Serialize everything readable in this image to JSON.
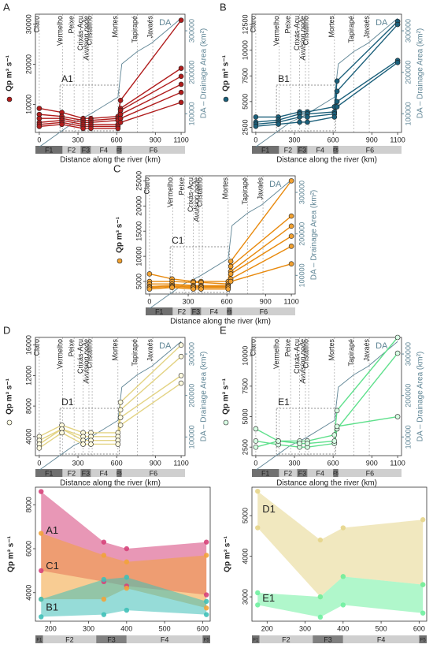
{
  "common": {
    "xlabel": "Distance along the river (km)",
    "ylabel": "Qp m³ s⁻¹",
    "y2label": "DA – Drainage Area (km²)",
    "xlim": [
      -30,
      1130
    ],
    "xticks": [
      0,
      300,
      600,
      900,
      1100
    ],
    "rivers": [
      {
        "name": "Claro",
        "x": 0
      },
      {
        "name": "Vermelho",
        "x": 180
      },
      {
        "name": "Peixe",
        "x": 270
      },
      {
        "name": "Crixás-Açu",
        "x": 340
      },
      {
        "name": "Avulsion node",
        "x": 385
      },
      {
        "name": "Cristalino",
        "x": 410
      },
      {
        "name": "Mortes",
        "x": 610
      },
      {
        "name": "Tapirapé",
        "x": 760
      },
      {
        "name": "Javaés",
        "x": 880
      }
    ],
    "zones": [
      {
        "name": "F1",
        "start": -30,
        "end": 180,
        "color": "#707070"
      },
      {
        "name": "F2",
        "start": 180,
        "end": 320,
        "color": "#cfcfcf"
      },
      {
        "name": "F3",
        "start": 320,
        "end": 400,
        "color": "#808080"
      },
      {
        "name": "F4",
        "start": 400,
        "end": 600,
        "color": "#cfcfcf"
      },
      {
        "name": "F5",
        "start": 600,
        "end": 640,
        "color": "#707070"
      },
      {
        "name": "F6",
        "start": 640,
        "end": 1130,
        "color": "#cfcfcf"
      }
    ],
    "da": {
      "name": "DA",
      "color": "#5f8595",
      "x": [
        0,
        180,
        270,
        340,
        400,
        610,
        640,
        760,
        870,
        1100
      ],
      "values": [
        20000,
        60000,
        80000,
        90000,
        100000,
        140000,
        220000,
        250000,
        270000,
        330000
      ]
    }
  },
  "chart_data": [
    {
      "type": "line",
      "panel": "A",
      "inset": "A1",
      "color": "#b01c1c",
      "marker_fill": "#b01c1c",
      "ylim": [
        3000,
        32500
      ],
      "yticks": [
        10000,
        20000,
        30000
      ],
      "y2lim": [
        55000,
        340000
      ],
      "y2ticks": [
        100000,
        200000,
        300000
      ],
      "x": [
        0,
        175,
        340,
        400,
        610,
        630,
        1100
      ],
      "series": [
        {
          "values": [
            9000,
            8000,
            6500,
            6500,
            7000,
            11000,
            31000
          ]
        },
        {
          "values": [
            7500,
            7000,
            6000,
            6000,
            6500,
            9000,
            19000
          ]
        },
        {
          "values": [
            6500,
            6500,
            5500,
            5500,
            6000,
            8500,
            17000
          ]
        },
        {
          "values": [
            5500,
            6000,
            5000,
            5000,
            5000,
            7500,
            15000
          ]
        },
        {
          "values": [
            5000,
            5500,
            4500,
            4500,
            4500,
            6500,
            13000
          ]
        },
        {
          "values": [
            4500,
            5000,
            4000,
            4000,
            4000,
            5500,
            10500
          ]
        }
      ]
    },
    {
      "type": "line",
      "panel": "B",
      "inset": "B1",
      "color": "#1a5f7a",
      "marker_fill": "#1a5f7a",
      "ylim": [
        2000,
        13500
      ],
      "yticks": [
        2500,
        5000,
        7500,
        10000,
        12500
      ],
      "y2lim": [
        55000,
        340000
      ],
      "y2ticks": [
        100000,
        200000,
        300000
      ],
      "x": [
        0,
        175,
        340,
        400,
        610,
        630,
        1100
      ],
      "series": [
        {
          "values": [
            3500,
            3500,
            4000,
            4000,
            4500,
            7000,
            12800
          ]
        },
        {
          "values": [
            3000,
            3200,
            3800,
            3800,
            4000,
            6000,
            12500
          ]
        },
        {
          "values": [
            2800,
            3000,
            3500,
            3500,
            3800,
            5000,
            9000
          ]
        },
        {
          "values": [
            2600,
            2800,
            3000,
            3000,
            3500,
            4500,
            8800
          ]
        }
      ]
    },
    {
      "type": "line",
      "panel": "C",
      "inset": "C1",
      "color": "#e8890c",
      "marker_fill": "#f0a030",
      "ylim": [
        2500,
        26000
      ],
      "yticks": [
        5000,
        10000,
        15000,
        20000,
        25000
      ],
      "y2lim": [
        55000,
        340000
      ],
      "y2ticks": [
        100000,
        200000,
        300000
      ],
      "x": [
        0,
        175,
        340,
        400,
        610,
        630,
        1100
      ],
      "series": [
        {
          "values": [
            6500,
            5500,
            5000,
            5000,
            5000,
            9000,
            25000
          ]
        },
        {
          "values": [
            5000,
            5000,
            4800,
            4800,
            4500,
            8000,
            18000
          ]
        },
        {
          "values": [
            4500,
            4500,
            4200,
            4200,
            4200,
            7000,
            16000
          ]
        },
        {
          "values": [
            4000,
            4200,
            4000,
            4000,
            4000,
            6500,
            14000
          ]
        },
        {
          "values": [
            3800,
            4000,
            3800,
            3800,
            3800,
            5500,
            12000
          ]
        },
        {
          "values": [
            3500,
            3800,
            3500,
            3500,
            3500,
            5000,
            8500
          ]
        }
      ]
    },
    {
      "type": "line",
      "panel": "D",
      "inset": "D1",
      "color": "#e3d384",
      "marker_fill": "#fffbe0",
      "ylim": [
        1500,
        17000
      ],
      "yticks": [
        4000,
        8000,
        12000,
        16000
      ],
      "y2lim": [
        55000,
        340000
      ],
      "y2ticks": [
        100000,
        200000,
        300000
      ],
      "x": [
        0,
        175,
        340,
        400,
        610,
        630,
        1100
      ],
      "series": [
        {
          "values": [
            4000,
            5500,
            4500,
            4500,
            4500,
            8500,
            16000
          ]
        },
        {
          "values": [
            3500,
            5000,
            4000,
            4000,
            4000,
            7500,
            14500
          ]
        },
        {
          "values": [
            3000,
            5000,
            3500,
            3500,
            3500,
            6500,
            12000
          ]
        },
        {
          "values": [
            2500,
            4500,
            3000,
            3000,
            3000,
            5500,
            11000
          ]
        }
      ]
    },
    {
      "type": "line",
      "panel": "E",
      "inset": "E1",
      "color": "#5fe08c",
      "marker_fill": "#d8ffe4",
      "ylim": [
        1800,
        11500
      ],
      "yticks": [
        2500,
        5000,
        7500,
        10000
      ],
      "y2lim": [
        55000,
        340000
      ],
      "y2ticks": [
        100000,
        200000,
        300000
      ],
      "x": [
        0,
        175,
        340,
        400,
        610,
        630,
        1100
      ],
      "series": [
        {
          "values": [
            4000,
            3000,
            3000,
            3000,
            3500,
            5500,
            11500
          ]
        },
        {
          "values": [
            3000,
            2700,
            2500,
            2500,
            2800,
            4000,
            10200
          ]
        },
        {
          "values": [
            2500,
            3000,
            2800,
            2800,
            3000,
            4200,
            5000
          ]
        }
      ]
    },
    {
      "type": "area",
      "xlim": [
        160,
        620
      ],
      "xticks": [
        200,
        300,
        400,
        500,
        600
      ],
      "ylim": [
        2700,
        8800
      ],
      "yticks": [
        4000,
        6000,
        8000
      ],
      "series": [
        {
          "name": "A1",
          "color": "#d6427a",
          "x": [
            175,
            340,
            400,
            610
          ],
          "upper": [
            8600,
            6300,
            6000,
            6300
          ],
          "lower": [
            5000,
            4500,
            4300,
            3900
          ]
        },
        {
          "name": "C1",
          "color": "#f2a33a",
          "x": [
            175,
            340,
            400,
            610
          ],
          "upper": [
            6700,
            5700,
            5400,
            5700
          ],
          "lower": [
            3700,
            3700,
            4200,
            3300
          ]
        },
        {
          "name": "B1",
          "color": "#3fc0b8",
          "x": [
            175,
            340,
            400,
            610
          ],
          "upper": [
            3700,
            4600,
            4700,
            3600
          ],
          "lower": [
            2900,
            3000,
            3200,
            3000
          ]
        }
      ]
    },
    {
      "type": "area",
      "xlim": [
        160,
        620
      ],
      "xticks": [
        200,
        300,
        400,
        500,
        600
      ],
      "ylim": [
        2400,
        5700
      ],
      "yticks": [
        3000,
        4000,
        5000
      ],
      "series": [
        {
          "name": "D1",
          "color": "#e6d58a",
          "x": [
            175,
            340,
            400,
            610
          ],
          "upper": [
            5600,
            4400,
            4700,
            4900
          ],
          "lower": [
            4700,
            3000,
            3500,
            3300
          ]
        },
        {
          "name": "E1",
          "color": "#6ff0a0",
          "x": [
            175,
            340,
            400,
            610
          ],
          "upper": [
            3100,
            3000,
            3500,
            3300
          ],
          "lower": [
            2800,
            2500,
            2800,
            2600
          ]
        }
      ]
    }
  ]
}
